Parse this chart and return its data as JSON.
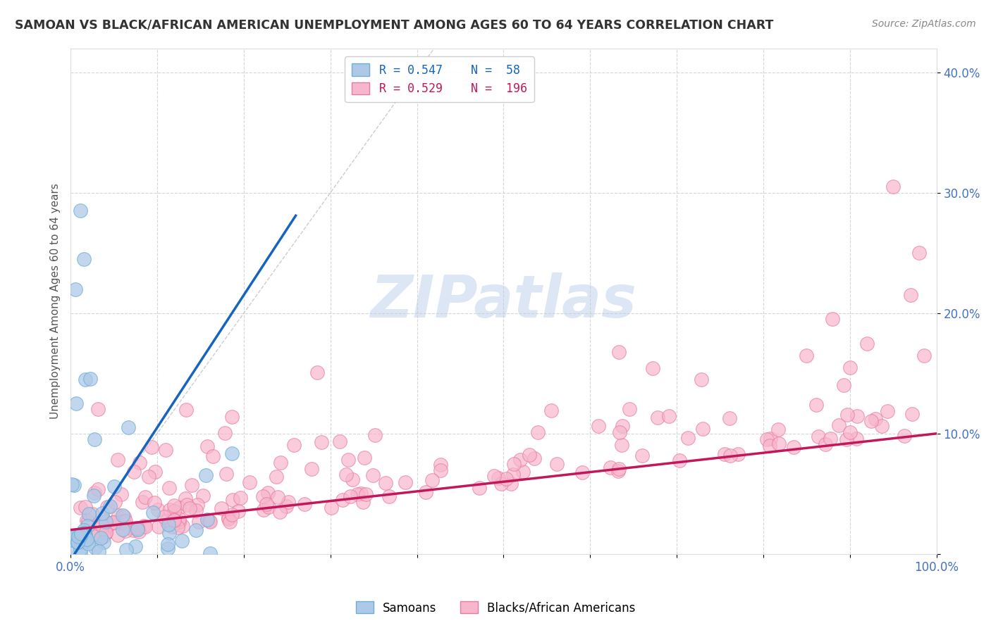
{
  "title": "SAMOAN VS BLACK/AFRICAN AMERICAN UNEMPLOYMENT AMONG AGES 60 TO 64 YEARS CORRELATION CHART",
  "source_text": "Source: ZipAtlas.com",
  "ylabel": "Unemployment Among Ages 60 to 64 years",
  "xlim": [
    0,
    1.0
  ],
  "ylim": [
    0,
    0.42
  ],
  "xticks": [
    0.0,
    0.1,
    0.2,
    0.3,
    0.4,
    0.5,
    0.6,
    0.7,
    0.8,
    0.9,
    1.0
  ],
  "xticklabels": [
    "0.0%",
    "",
    "",
    "",
    "",
    "",
    "",
    "",
    "",
    "",
    "100.0%"
  ],
  "yticks": [
    0.0,
    0.1,
    0.2,
    0.3,
    0.4
  ],
  "yticklabels": [
    "",
    "10.0%",
    "20.0%",
    "30.0%",
    "40.0%"
  ],
  "samoan_color": "#aec9e8",
  "samoan_edge_color": "#6baed6",
  "black_color": "#f7b6cc",
  "black_edge_color": "#e87aa0",
  "trendline_samoan_color": "#1565c0",
  "trendline_black_color": "#c2185b",
  "diagonal_color": "#cccccc",
  "R_samoan": 0.547,
  "N_samoan": 58,
  "R_black": 0.529,
  "N_black": 196,
  "watermark_color": "#dce6f5",
  "legend_samoan": "Samoans",
  "legend_black": "Blacks/African Americans",
  "background_color": "#ffffff",
  "grid_color": "#cccccc"
}
